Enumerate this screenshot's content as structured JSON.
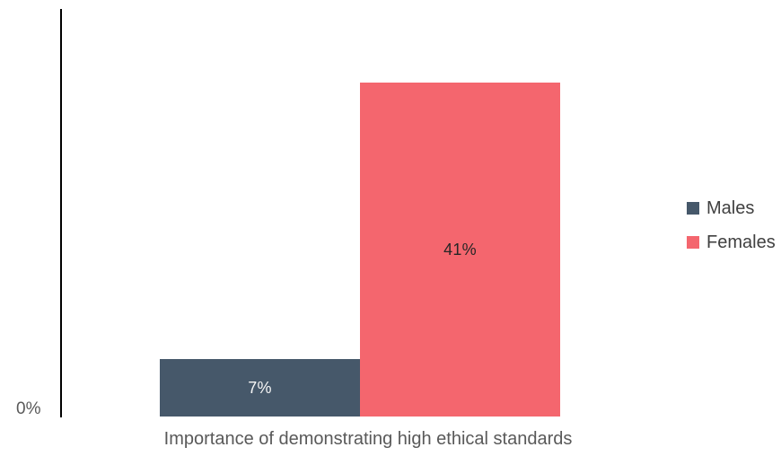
{
  "chart_data": {
    "type": "bar",
    "title": "",
    "xlabel": "Importance of demonstrating high ethical standards",
    "ylabel": "",
    "ylim": [
      0,
      50
    ],
    "y_tick_labels": [
      "0%"
    ],
    "grid": false,
    "legend_position": "right",
    "axis_color": "#000000",
    "text_color": "#595959",
    "legend_text_color": "#404040",
    "categories": [
      "Importance of demonstrating high ethical standards"
    ],
    "series": [
      {
        "name": "Males",
        "value": 7,
        "label": "7%",
        "color": "#46586A",
        "label_color": "#F5F5F5"
      },
      {
        "name": "Females",
        "value": 41,
        "label": "41%",
        "color": "#F4666E",
        "label_color": "#262626"
      }
    ]
  }
}
